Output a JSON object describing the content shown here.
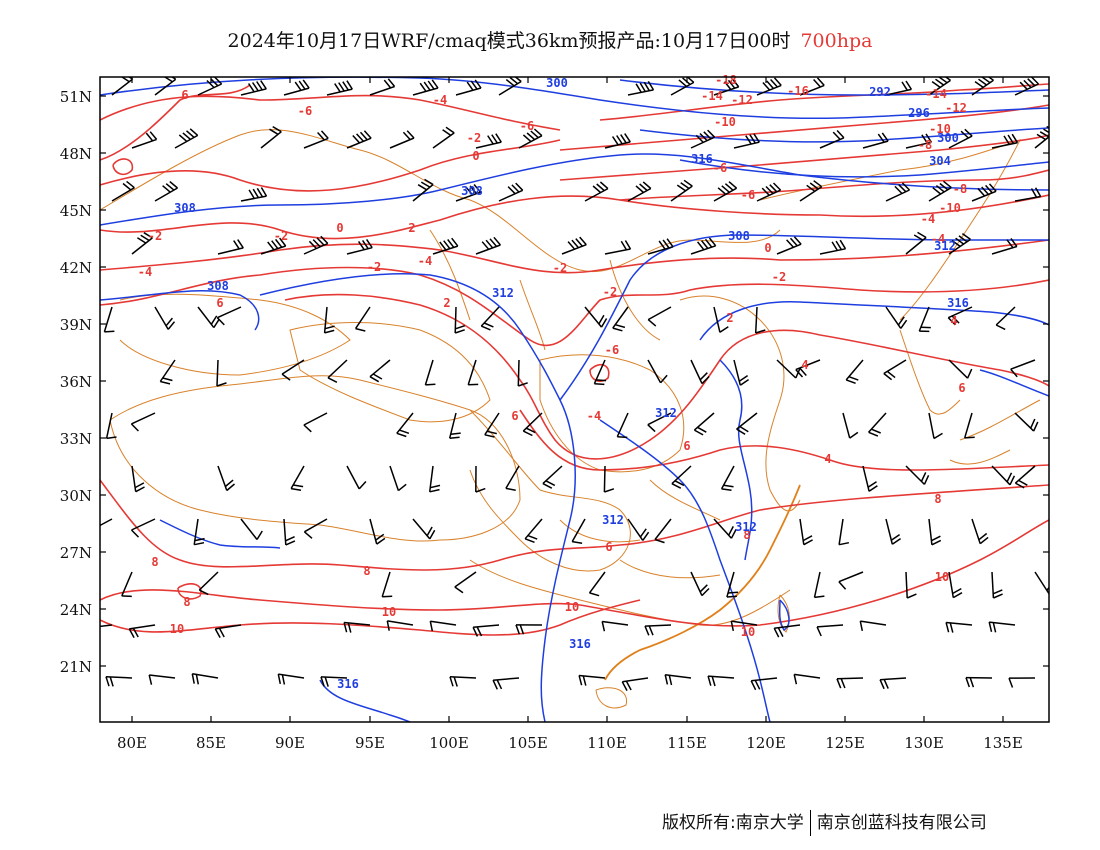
{
  "title": {
    "text": "2024年10月17日WRF/cmaq模式36km预报产品:10月17日00时",
    "level": "700hpa"
  },
  "axes": {
    "lat_labels": [
      "51N",
      "48N",
      "45N",
      "42N",
      "39N",
      "36N",
      "33N",
      "30N",
      "27N",
      "24N",
      "21N"
    ],
    "lon_labels": [
      "80E",
      "85E",
      "90E",
      "95E",
      "100E",
      "105E",
      "110E",
      "115E",
      "120E",
      "125E",
      "130E",
      "135E"
    ]
  },
  "legend": {
    "temperature_color": "#e53935",
    "height_color": "#1e3ee0",
    "boundary_color": "#d9822b",
    "barb_color": "#000000"
  },
  "temperature_labels": [
    "6",
    "-6",
    "-4",
    "-6",
    "-2",
    "0",
    "-18",
    "-14",
    "-12",
    "-16",
    "-10",
    "-14",
    "-12",
    "-10",
    "-8",
    "-6",
    "-8",
    "-6",
    "-4",
    "-2",
    "-10",
    "-2",
    "0",
    "2",
    "-4",
    "-2",
    "0",
    "-4",
    "-2",
    "-2",
    "-2",
    "-4",
    "6",
    "2",
    "4",
    "-6",
    "2",
    "4",
    "6",
    "6",
    "-4",
    "4",
    "6",
    "8",
    "6",
    "8",
    "8",
    "8",
    "8",
    "10",
    "10",
    "10",
    "10",
    "10",
    "10"
  ],
  "height_labels": [
    "300",
    "308",
    "308",
    "308",
    "312",
    "308",
    "292",
    "296",
    "300",
    "304",
    "312",
    "312",
    "316",
    "312",
    "312",
    "316",
    "316",
    "316"
  ],
  "footer": {
    "copyright": "版权所有:南京大学",
    "company": "南京创蓝科技有限公司"
  }
}
